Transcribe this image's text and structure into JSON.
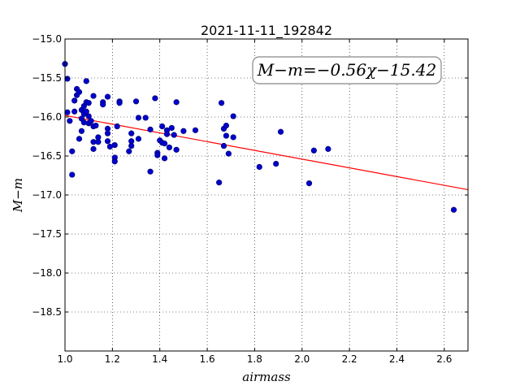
{
  "chart_data": {
    "type": "scatter",
    "title": "2021-11-11_192842",
    "xlabel": "airmass",
    "ylabel": "M−m",
    "xlim": [
      1.0,
      2.7
    ],
    "ylim": [
      -15.0,
      -19.0
    ],
    "y_inverted": true,
    "grid": true,
    "grid_style": "dotted",
    "xticks": [
      1.0,
      1.2,
      1.4,
      1.6,
      1.8,
      2.0,
      2.2,
      2.4,
      2.6
    ],
    "xtick_labels": [
      "1.0",
      "1.2",
      "1.4",
      "1.6",
      "1.8",
      "2.0",
      "2.2",
      "2.4",
      "2.6"
    ],
    "yticks": [
      -15.0,
      -15.5,
      -16.0,
      -16.5,
      -17.0,
      -17.5,
      -18.0,
      -18.5
    ],
    "ytick_labels": [
      "−15.0",
      "−15.5",
      "−16.0",
      "−16.5",
      "−17.0",
      "−17.5",
      "−18.0",
      "−18.5"
    ],
    "annotation": "M−m=−0.56χ−15.42",
    "annotation_placement": "top-right",
    "fit": {
      "slope": -0.56,
      "intercept": -15.42,
      "color": "#ff0000"
    },
    "marker_color": "#0000cc",
    "points": [
      {
        "x": 1.0,
        "y": -15.32
      },
      {
        "x": 1.01,
        "y": -15.51
      },
      {
        "x": 1.01,
        "y": -15.94
      },
      {
        "x": 1.02,
        "y": -16.05
      },
      {
        "x": 1.03,
        "y": -16.44
      },
      {
        "x": 1.03,
        "y": -16.74
      },
      {
        "x": 1.04,
        "y": -15.93
      },
      {
        "x": 1.04,
        "y": -15.79
      },
      {
        "x": 1.05,
        "y": -15.72
      },
      {
        "x": 1.05,
        "y": -15.64
      },
      {
        "x": 1.06,
        "y": -15.68
      },
      {
        "x": 1.06,
        "y": -16.28
      },
      {
        "x": 1.07,
        "y": -16.02
      },
      {
        "x": 1.07,
        "y": -16.18
      },
      {
        "x": 1.07,
        "y": -15.91
      },
      {
        "x": 1.08,
        "y": -15.86
      },
      {
        "x": 1.08,
        "y": -15.96
      },
      {
        "x": 1.08,
        "y": -16.07
      },
      {
        "x": 1.09,
        "y": -15.54
      },
      {
        "x": 1.09,
        "y": -15.81
      },
      {
        "x": 1.09,
        "y": -15.93
      },
      {
        "x": 1.1,
        "y": -16.08
      },
      {
        "x": 1.1,
        "y": -15.99
      },
      {
        "x": 1.1,
        "y": -16.08
      },
      {
        "x": 1.1,
        "y": -15.82
      },
      {
        "x": 1.11,
        "y": -16.05
      },
      {
        "x": 1.12,
        "y": -16.12
      },
      {
        "x": 1.12,
        "y": -16.41
      },
      {
        "x": 1.12,
        "y": -15.73
      },
      {
        "x": 1.12,
        "y": -16.32
      },
      {
        "x": 1.13,
        "y": -16.11
      },
      {
        "x": 1.14,
        "y": -16.26
      },
      {
        "x": 1.14,
        "y": -16.32
      },
      {
        "x": 1.16,
        "y": -15.81
      },
      {
        "x": 1.16,
        "y": -15.84
      },
      {
        "x": 1.18,
        "y": -15.74
      },
      {
        "x": 1.18,
        "y": -16.15
      },
      {
        "x": 1.18,
        "y": -16.21
      },
      {
        "x": 1.18,
        "y": -16.31
      },
      {
        "x": 1.19,
        "y": -16.38
      },
      {
        "x": 1.21,
        "y": -16.36
      },
      {
        "x": 1.21,
        "y": -16.52
      },
      {
        "x": 1.21,
        "y": -16.57
      },
      {
        "x": 1.22,
        "y": -16.12
      },
      {
        "x": 1.23,
        "y": -15.8
      },
      {
        "x": 1.23,
        "y": -15.82
      },
      {
        "x": 1.27,
        "y": -16.44
      },
      {
        "x": 1.28,
        "y": -16.21
      },
      {
        "x": 1.28,
        "y": -16.31
      },
      {
        "x": 1.28,
        "y": -16.37
      },
      {
        "x": 1.3,
        "y": -15.8
      },
      {
        "x": 1.31,
        "y": -16.01
      },
      {
        "x": 1.31,
        "y": -16.28
      },
      {
        "x": 1.34,
        "y": -16.01
      },
      {
        "x": 1.36,
        "y": -16.16
      },
      {
        "x": 1.36,
        "y": -16.7
      },
      {
        "x": 1.38,
        "y": -15.76
      },
      {
        "x": 1.39,
        "y": -16.46
      },
      {
        "x": 1.39,
        "y": -16.49
      },
      {
        "x": 1.4,
        "y": -16.3
      },
      {
        "x": 1.41,
        "y": -16.12
      },
      {
        "x": 1.41,
        "y": -16.33
      },
      {
        "x": 1.42,
        "y": -16.34
      },
      {
        "x": 1.42,
        "y": -16.53
      },
      {
        "x": 1.43,
        "y": -16.17
      },
      {
        "x": 1.43,
        "y": -16.22
      },
      {
        "x": 1.44,
        "y": -16.39
      },
      {
        "x": 1.45,
        "y": -16.14
      },
      {
        "x": 1.46,
        "y": -16.23
      },
      {
        "x": 1.47,
        "y": -15.81
      },
      {
        "x": 1.47,
        "y": -16.42
      },
      {
        "x": 1.5,
        "y": -16.18
      },
      {
        "x": 1.55,
        "y": -16.17
      },
      {
        "x": 1.65,
        "y": -16.84
      },
      {
        "x": 1.66,
        "y": -15.82
      },
      {
        "x": 1.67,
        "y": -16.37
      },
      {
        "x": 1.67,
        "y": -16.15
      },
      {
        "x": 1.68,
        "y": -16.11
      },
      {
        "x": 1.68,
        "y": -16.24
      },
      {
        "x": 1.69,
        "y": -16.47
      },
      {
        "x": 1.71,
        "y": -16.26
      },
      {
        "x": 1.71,
        "y": -15.99
      },
      {
        "x": 1.82,
        "y": -16.64
      },
      {
        "x": 1.89,
        "y": -16.6
      },
      {
        "x": 1.91,
        "y": -16.19
      },
      {
        "x": 2.03,
        "y": -16.85
      },
      {
        "x": 2.05,
        "y": -16.43
      },
      {
        "x": 2.11,
        "y": -16.41
      },
      {
        "x": 2.64,
        "y": -17.19
      }
    ]
  }
}
